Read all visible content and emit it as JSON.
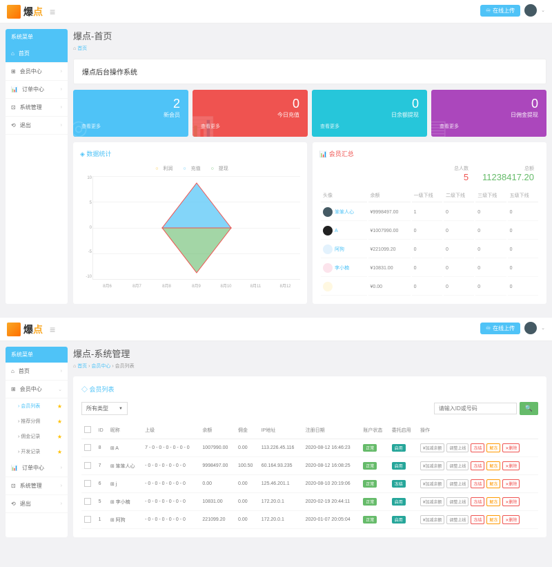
{
  "top": {
    "logo": "爆点",
    "upload": "在线上传"
  },
  "sidebar1": {
    "header": "系统菜单",
    "items": [
      {
        "icon": "⌂",
        "label": "首页",
        "active": true
      },
      {
        "icon": "⊞",
        "label": "会员中心"
      },
      {
        "icon": "📊",
        "label": "订单中心"
      },
      {
        "icon": "⊡",
        "label": "系统管理"
      },
      {
        "icon": "⟲",
        "label": "退出"
      }
    ]
  },
  "sidebar2": {
    "header": "系统菜单",
    "items": [
      {
        "icon": "⌂",
        "label": "首页"
      },
      {
        "icon": "⊞",
        "label": "会员中心",
        "expanded": true,
        "subs": [
          {
            "label": "会员列表",
            "active": true,
            "star": true
          },
          {
            "label": "推荐分佣",
            "star": true
          },
          {
            "label": "佣金记录",
            "star": true
          },
          {
            "label": "开发记录",
            "star": true
          }
        ]
      },
      {
        "icon": "📊",
        "label": "订单中心"
      },
      {
        "icon": "⊡",
        "label": "系统管理"
      },
      {
        "icon": "⟲",
        "label": "退出"
      }
    ]
  },
  "page1": {
    "title": "爆点-首页",
    "crumb_home": "首页",
    "banner": "爆点后台操作系统",
    "stats": [
      {
        "num": "2",
        "label": "新会员",
        "footer": "查看更多",
        "bg": "◎",
        "color": "c-blue"
      },
      {
        "num": "0",
        "label": "今日充值",
        "footer": "查看更多",
        "bg": "📊",
        "color": "c-red"
      },
      {
        "num": "0",
        "label": "日余额提现",
        "footer": "查看更多",
        "bg": "",
        "color": "c-teal"
      },
      {
        "num": "0",
        "label": "日佣金提现",
        "footer": "查看更多",
        "bg": "▤",
        "color": "c-purple"
      }
    ],
    "chart": {
      "title": "◈ 数据统计",
      "legend": [
        "利润",
        "充值",
        "提现"
      ],
      "legend_colors": [
        "#fbc02d",
        "#4fc3f7",
        "#66bb6a"
      ],
      "y_ticks": [
        "10",
        "5",
        "0",
        "-5",
        "-10"
      ],
      "x_ticks": [
        "8月6",
        "8月7",
        "8月8",
        "8月9",
        "8月10",
        "8月11",
        "8月12"
      ],
      "diamond_top_color": "#4fc3f7",
      "diamond_bottom_color": "#66bb6a",
      "diamond_outline": "#ef5350"
    },
    "members": {
      "title": "📊 会员汇总",
      "total_label": "总人数",
      "total_val": "5",
      "money_label": "总额",
      "money_val": "11238417.20",
      "headers": [
        "头像",
        "余额",
        "一级下线",
        "二级下线",
        "三级下线",
        "五级下线"
      ],
      "rows": [
        {
          "avatar": "#455a64",
          "name": "笨笨人心",
          "balance": "¥9998497.00",
          "c1": "1",
          "c2": "0",
          "c3": "0",
          "c4": "0"
        },
        {
          "avatar": "#212121",
          "name": "A",
          "balance": "¥1007990.00",
          "c1": "0",
          "c2": "0",
          "c3": "0",
          "c4": "0"
        },
        {
          "avatar": "#e3f2fd",
          "name": "阿狗",
          "balance": "¥221099.20",
          "c1": "0",
          "c2": "0",
          "c3": "0",
          "c4": "0"
        },
        {
          "avatar": "#fce4ec",
          "name": "李小楠",
          "balance": "¥10831.00",
          "c1": "0",
          "c2": "0",
          "c3": "0",
          "c4": "0"
        },
        {
          "avatar": "#fff8e1",
          "name": "",
          "balance": "¥0.00",
          "c1": "0",
          "c2": "0",
          "c3": "0",
          "c4": "0"
        }
      ]
    }
  },
  "page2": {
    "title": "爆点-系统管理",
    "crumbs": [
      "首页",
      "会员中心",
      "会员列表"
    ],
    "panel_title": "◇ 会员列表",
    "filter_select": "所有类型",
    "search_placeholder": "请输入ID或号码",
    "headers": [
      "",
      "ID",
      "昵称",
      "上级",
      "余额",
      "佣金",
      "IP地址",
      "注册日期",
      "账户状态",
      "委托启用",
      "操作"
    ],
    "rows": [
      {
        "id": "8",
        "name": "A",
        "chain": "7 - 0 - 0 - 0 - 0 - 0 - 0",
        "bal": "1007990.00",
        "comm": "0.00",
        "ip": "113.226.45.116",
        "date": "2020-08-12 16:46:23",
        "s1": "正常",
        "s2": "启用"
      },
      {
        "id": "7",
        "name": "笨笨人心",
        "chain": "- 0 - 0 - 0 - 0 - 0 - 0",
        "bal": "9998497.00",
        "comm": "100.50",
        "ip": "60.164.93.235",
        "date": "2020-08-12 16:08:25",
        "s1": "正常",
        "s2": "启用"
      },
      {
        "id": "6",
        "name": "j",
        "chain": "- 0 - 0 - 0 - 0 - 0 - 0",
        "bal": "0.00",
        "comm": "0.00",
        "ip": "125.46.201.1",
        "date": "2020-08-10 20:19:06",
        "s1": "正常",
        "s2": "冻结"
      },
      {
        "id": "5",
        "name": "李小楠",
        "chain": "- 0 - 0 - 0 - 0 - 0 - 0",
        "bal": "10831.00",
        "comm": "0.00",
        "ip": "172.20.0.1",
        "date": "2020-02-19 20:44:11",
        "s1": "正常",
        "s2": "启用"
      },
      {
        "id": "1",
        "name": "阿狗",
        "chain": "- 0 - 0 - 0 - 0 - 0 - 0",
        "bal": "221099.20",
        "comm": "0.00",
        "ip": "172.20.0.1",
        "date": "2020-01-07 20:05:04",
        "s1": "正常",
        "s2": "启用"
      }
    ],
    "actions": [
      "¥加减余额",
      "调整上线",
      "冻结",
      "解冻",
      "✕删除"
    ]
  }
}
